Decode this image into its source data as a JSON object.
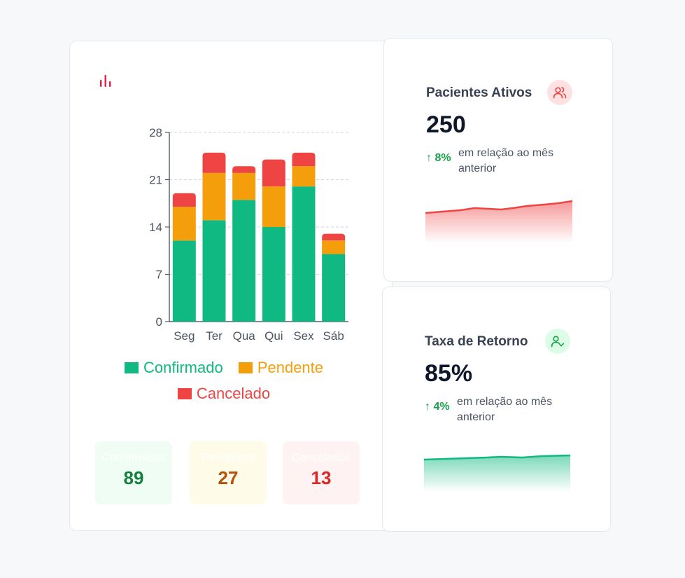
{
  "colors": {
    "confirmed": "#10b981",
    "pending": "#f59e0b",
    "canceled": "#ef4444",
    "trend_up": "#16a34a"
  },
  "chart_header": {
    "icon": "bar-chart-icon"
  },
  "chart_data": {
    "type": "bar",
    "stacked": true,
    "categories": [
      "Seg",
      "Ter",
      "Qua",
      "Qui",
      "Sex",
      "Sáb"
    ],
    "series": [
      {
        "name": "Confirmado",
        "values": [
          12,
          15,
          18,
          14,
          20,
          10
        ]
      },
      {
        "name": "Pendente",
        "values": [
          5,
          7,
          4,
          6,
          3,
          2
        ]
      },
      {
        "name": "Cancelado",
        "values": [
          2,
          3,
          1,
          4,
          2,
          1
        ]
      }
    ],
    "yticks": [
      0,
      7,
      14,
      21,
      28
    ],
    "ylim": [
      0,
      28
    ],
    "grid": true,
    "legend_position": "bottom"
  },
  "summary": [
    {
      "label": "Confirmados",
      "value": "89"
    },
    {
      "label": "Pendentes",
      "value": "27"
    },
    {
      "label": "Cancelados",
      "value": "13"
    }
  ],
  "cards": {
    "active_patients": {
      "title": "Pacientes Ativos",
      "value": "250",
      "change": "↑ 8%",
      "change_text": "em relação ao mês anterior",
      "icon": "users-icon"
    },
    "return_rate": {
      "title": "Taxa de Retorno",
      "value": "85%",
      "change": "↑ 4%",
      "change_text": "em relação ao mês anterior",
      "icon": "user-check-icon"
    }
  }
}
